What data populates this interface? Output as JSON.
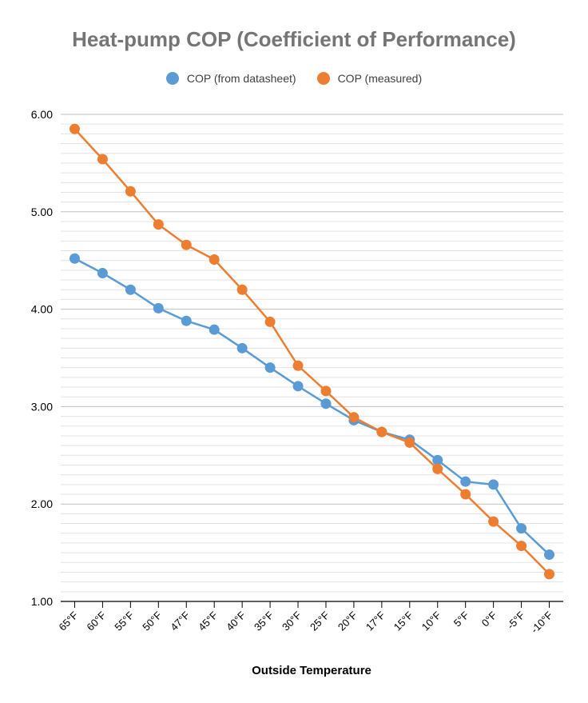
{
  "chart_data": {
    "type": "line",
    "title": "Heat-pump COP (Coefficient of Performance)",
    "xlabel": "Outside Temperature",
    "ylabel": "",
    "categories": [
      "65°F",
      "60°F",
      "55°F",
      "50°F",
      "47°F",
      "45°F",
      "40°F",
      "35°F",
      "30°F",
      "25°F",
      "20°F",
      "17°F",
      "15°F",
      "10°F",
      "5°F",
      "0°F",
      "-5°F",
      "-10°F"
    ],
    "series": [
      {
        "name": "COP (from datasheet)",
        "color": "#5b9bd5",
        "values": [
          4.52,
          4.37,
          4.2,
          4.01,
          3.88,
          3.79,
          3.6,
          3.4,
          3.21,
          3.03,
          2.86,
          2.74,
          2.66,
          2.45,
          2.23,
          2.2,
          1.75,
          1.48
        ]
      },
      {
        "name": "COP (measured)",
        "color": "#ed7d31",
        "values": [
          5.85,
          5.54,
          5.21,
          4.87,
          4.66,
          4.51,
          4.2,
          3.87,
          3.42,
          3.16,
          2.89,
          2.74,
          2.63,
          2.36,
          2.1,
          1.82,
          1.57,
          1.28
        ]
      }
    ],
    "ylim": [
      1.0,
      6.0
    ],
    "yticks": [
      "1.00",
      "2.00",
      "3.00",
      "4.00",
      "5.00",
      "6.00"
    ],
    "grid": true,
    "legend_position": "top-center"
  }
}
